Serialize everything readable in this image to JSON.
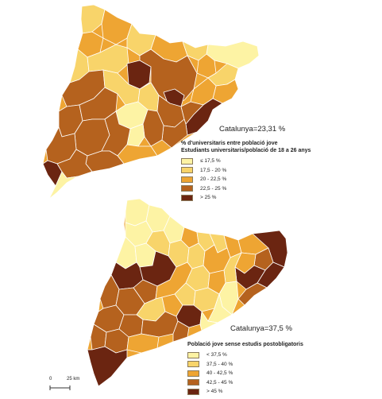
{
  "colors": {
    "c1": "#fdf3a4",
    "c2": "#f8d46a",
    "c3": "#eea533",
    "c4": "#b5621e",
    "c5": "#6b2511",
    "border": "#ffffff"
  },
  "map_top": {
    "total": "Catalunya=23,31 %",
    "legend_title_1": "% d'universitaris entre població jove",
    "legend_title_2": "Estudiants universitaris/població de 18 a 26 anys",
    "classes": [
      {
        "label": "≤ 17,5 %",
        "color": "#fdf3a4"
      },
      {
        "label": "17,5 - 20 %",
        "color": "#f8d46a"
      },
      {
        "label": "20 - 22,5 %",
        "color": "#eea533"
      },
      {
        "label": "22,5 - 25 %",
        "color": "#b5621e"
      },
      {
        "label": "> 25 %",
        "color": "#6b2511"
      }
    ]
  },
  "map_bottom": {
    "total": "Catalunya=37,5 %",
    "legend_title": "Població jove sense estudis postobligatoris",
    "classes": [
      {
        "label": "< 37,5 %",
        "color": "#fdf3a4"
      },
      {
        "label": "37,5 - 40 %",
        "color": "#f8d46a"
      },
      {
        "label": "40 - 42,5 %",
        "color": "#eea533"
      },
      {
        "label": "42,5 - 45 %",
        "color": "#b5621e"
      },
      {
        "label": "> 45 %",
        "color": "#6b2511"
      }
    ]
  },
  "scalebar": {
    "zero": "0",
    "distance": "25 km"
  }
}
